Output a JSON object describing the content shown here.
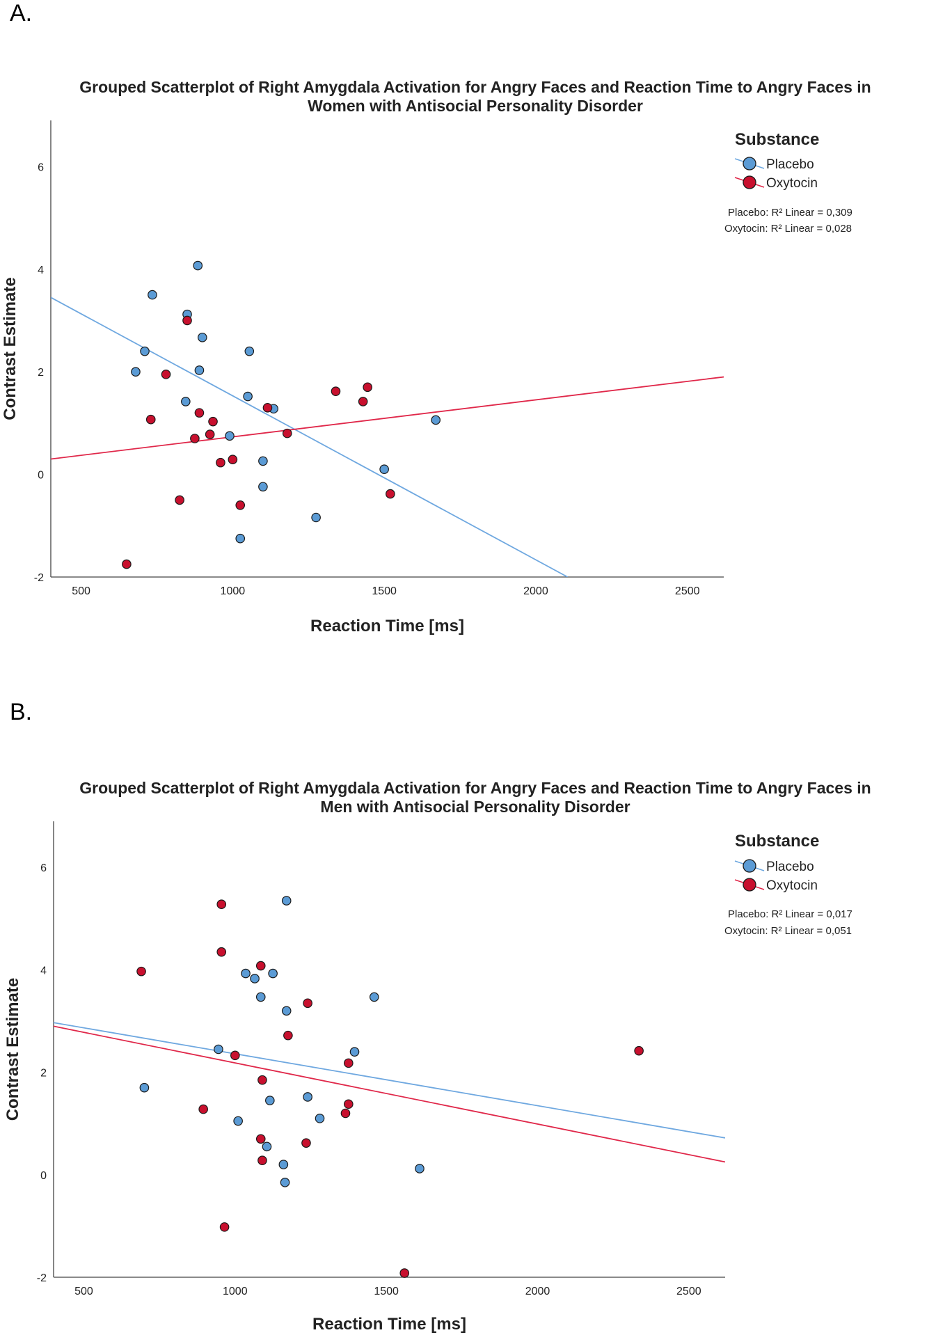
{
  "colors": {
    "placebo": "#5b9bd5",
    "oxytocin": "#c8102e",
    "placebo_line": "#6fa8e0",
    "oxytocin_line": "#e0284a"
  },
  "chart_data": [
    {
      "panel_label": "A.",
      "type": "scatter",
      "title_line1": "Grouped Scatterplot of Right Amygdala Activation for Angry Faces and Reaction Time to Angry Faces in",
      "title_line2": "Women with Antisocial Personality Disorder",
      "xlabel": "Reaction Time [ms]",
      "ylabel": "Contrast Estimate",
      "xlim": [
        400,
        2620
      ],
      "ylim": [
        -2,
        6.9
      ],
      "xticks": [
        500,
        1000,
        1500,
        2000,
        2500
      ],
      "yticks": [
        -2,
        0,
        2,
        4,
        6
      ],
      "legend_title": "Substance",
      "legend_placement": "top-right",
      "series": [
        {
          "name": "Placebo",
          "color": "#5b9bd5",
          "r2_label": "Placebo: R² Linear = 0,309",
          "fit": [
            [
              400,
              3.45
            ],
            [
              2105,
              -2.0
            ]
          ],
          "points": [
            [
              885,
              4.07
            ],
            [
              735,
              3.5
            ],
            [
              850,
              3.12
            ],
            [
              900,
              2.67
            ],
            [
              710,
              2.4
            ],
            [
              1055,
              2.4
            ],
            [
              680,
              2.0
            ],
            [
              890,
              2.03
            ],
            [
              1050,
              1.52
            ],
            [
              845,
              1.42
            ],
            [
              1135,
              1.28
            ],
            [
              990,
              0.75
            ],
            [
              1670,
              1.06
            ],
            [
              1100,
              0.26
            ],
            [
              1500,
              0.1
            ],
            [
              1100,
              -0.24
            ],
            [
              1275,
              -0.84
            ],
            [
              1025,
              -1.25
            ]
          ]
        },
        {
          "name": "Oxytocin",
          "color": "#c8102e",
          "r2_label": "Oxytocin: R² Linear = 0,028",
          "fit": [
            [
              400,
              0.3
            ],
            [
              2620,
              1.9
            ]
          ],
          "points": [
            [
              850,
              3.0
            ],
            [
              780,
              1.95
            ],
            [
              1445,
              1.7
            ],
            [
              1340,
              1.62
            ],
            [
              1430,
              1.42
            ],
            [
              1115,
              1.3
            ],
            [
              890,
              1.2
            ],
            [
              730,
              1.07
            ],
            [
              935,
              1.03
            ],
            [
              925,
              0.78
            ],
            [
              1180,
              0.8
            ],
            [
              875,
              0.7
            ],
            [
              1000,
              0.29
            ],
            [
              960,
              0.23
            ],
            [
              1520,
              -0.38
            ],
            [
              825,
              -0.5
            ],
            [
              1025,
              -0.6
            ],
            [
              650,
              -1.75
            ]
          ]
        }
      ]
    },
    {
      "panel_label": "B.",
      "type": "scatter",
      "title_line1": "Grouped Scatterplot of Right Amygdala Activation for Angry Faces and Reaction Time to Angry Faces in",
      "title_line2": "Men with Antisocial Personality Disorder",
      "xlabel": "Reaction Time [ms]",
      "ylabel": "Contrast Estimate",
      "xlim": [
        400,
        2620
      ],
      "ylim": [
        -2,
        6.9
      ],
      "xticks": [
        500,
        1000,
        1500,
        2000,
        2500
      ],
      "yticks": [
        -2,
        0,
        2,
        4,
        6
      ],
      "legend_title": "Substance",
      "legend_placement": "top-right",
      "series": [
        {
          "name": "Placebo",
          "color": "#5b9bd5",
          "r2_label": "Placebo: R² Linear = 0,017",
          "fit": [
            [
              400,
              2.97
            ],
            [
              2620,
              0.72
            ]
          ],
          "points": [
            [
              1170,
              5.35
            ],
            [
              1035,
              3.93
            ],
            [
              1125,
              3.93
            ],
            [
              1065,
              3.83
            ],
            [
              1085,
              3.47
            ],
            [
              1460,
              3.47
            ],
            [
              1170,
              3.2
            ],
            [
              1395,
              2.4
            ],
            [
              945,
              2.45
            ],
            [
              700,
              1.7
            ],
            [
              1240,
              1.52
            ],
            [
              1115,
              1.45
            ],
            [
              1280,
              1.1
            ],
            [
              1010,
              1.05
            ],
            [
              1105,
              0.55
            ],
            [
              1160,
              0.2
            ],
            [
              1610,
              0.12
            ],
            [
              1165,
              -0.15
            ]
          ]
        },
        {
          "name": "Oxytocin",
          "color": "#c8102e",
          "r2_label": "Oxytocin: R² Linear = 0,051",
          "fit": [
            [
              400,
              2.9
            ],
            [
              2620,
              0.25
            ]
          ],
          "points": [
            [
              955,
              5.28
            ],
            [
              955,
              4.35
            ],
            [
              1085,
              4.08
            ],
            [
              690,
              3.97
            ],
            [
              1240,
              3.35
            ],
            [
              1175,
              2.72
            ],
            [
              1000,
              2.33
            ],
            [
              2335,
              2.42
            ],
            [
              1375,
              2.18
            ],
            [
              1090,
              1.85
            ],
            [
              1375,
              1.38
            ],
            [
              895,
              1.28
            ],
            [
              1365,
              1.2
            ],
            [
              1085,
              0.7
            ],
            [
              1235,
              0.62
            ],
            [
              1090,
              0.28
            ],
            [
              965,
              -1.02
            ],
            [
              1560,
              -1.92
            ]
          ]
        }
      ]
    }
  ]
}
